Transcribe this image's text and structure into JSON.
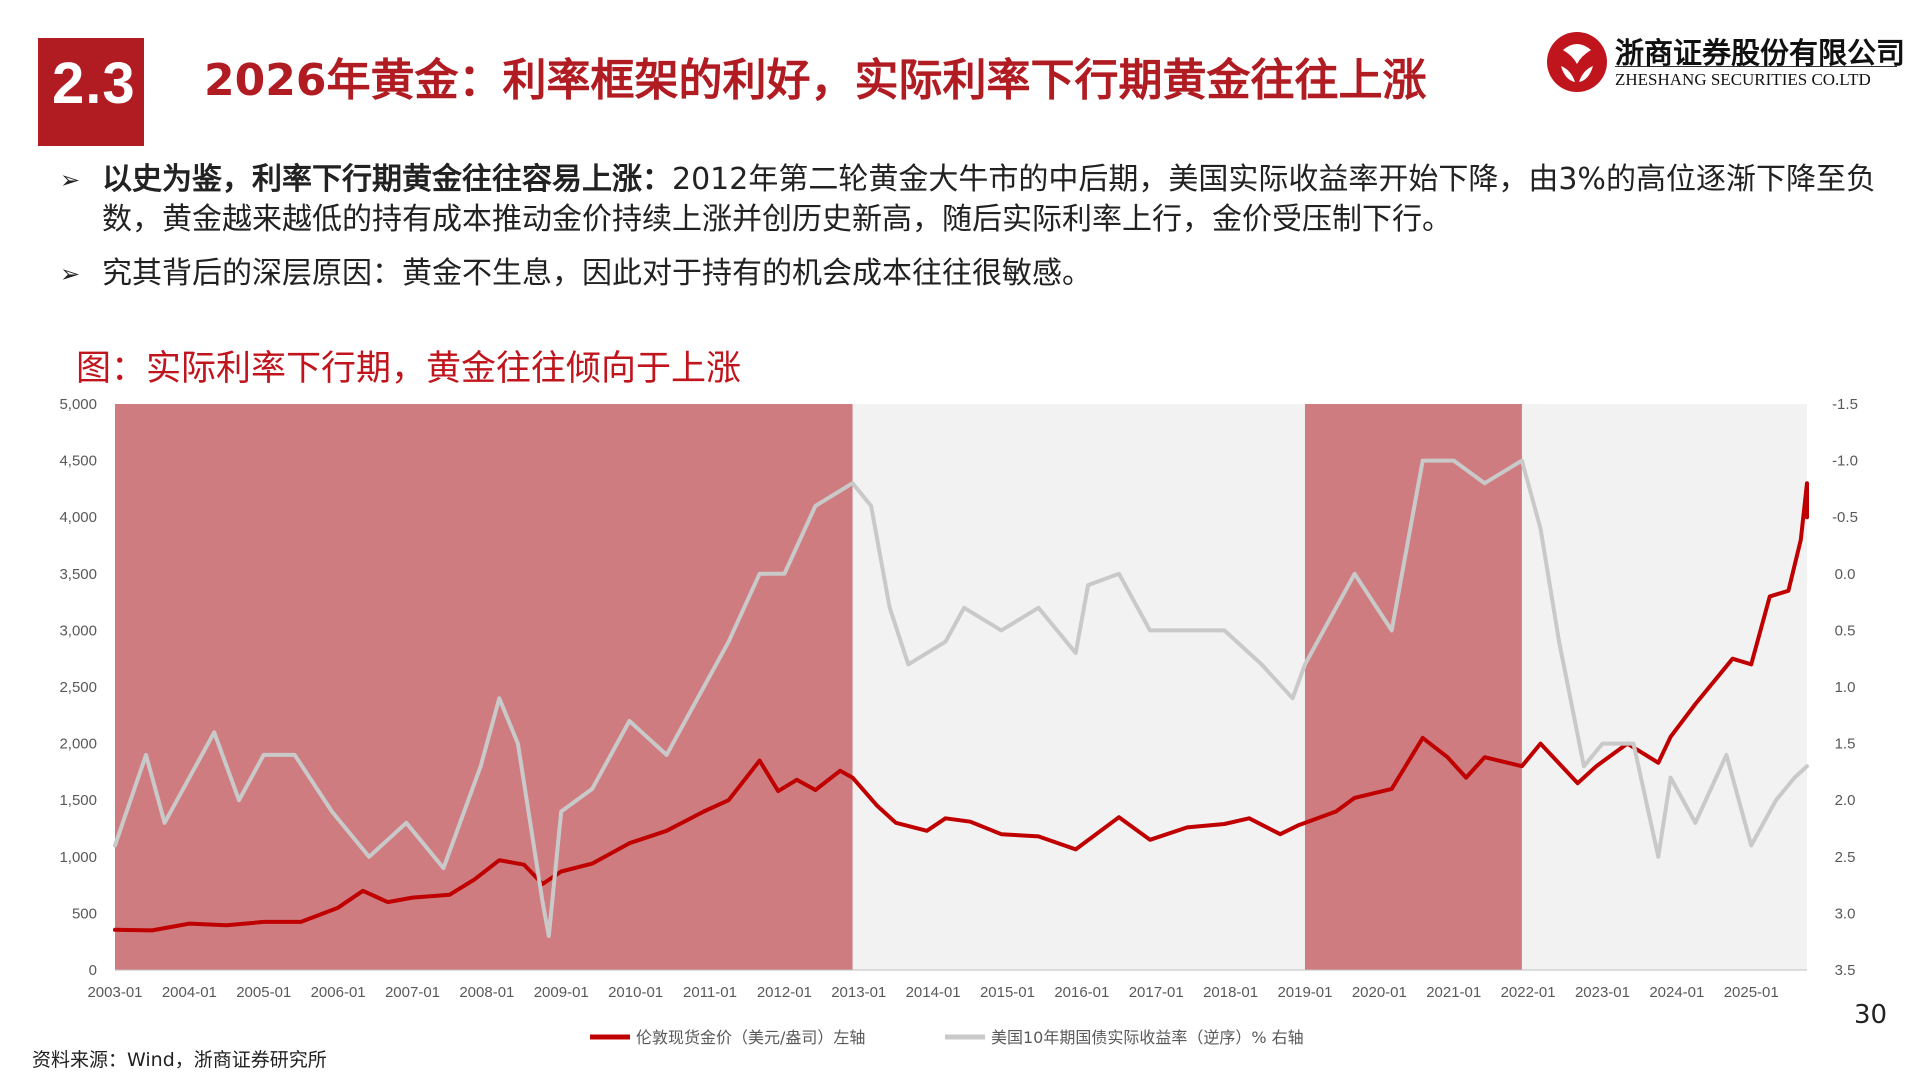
{
  "header": {
    "section_number": "2.3",
    "title": "2026年黄金：利率框架的利好，实际利率下行期黄金往往上涨",
    "logo_name": "浙商证券股份有限公司",
    "logo_en": "ZHESHANG SECURITIES CO.LTD",
    "accent_color": "#b11b22"
  },
  "bullets": [
    {
      "bold": "以史为鉴，利率下行期黄金往往容易上涨：",
      "text": "2012年第二轮黄金大牛市的中后期，美国实际收益率开始下降，由3%的高位逐渐下降至负数，黄金越来越低的持有成本推动金价持续上涨并创历史新高，随后实际利率上行，金价受压制下行。"
    },
    {
      "bold": "",
      "text": "究其背后的深层原因：黄金不生息，因此对于持有的机会成本往往很敏感。"
    }
  ],
  "figure_title": "图：实际利率下行期，黄金往往倾向于上涨",
  "page_number": "30",
  "source": "资料来源：Wind，浙商证券研究所",
  "chart_data": {
    "type": "line",
    "x_ticks": [
      "2003-01",
      "2004-01",
      "2005-01",
      "2006-01",
      "2007-01",
      "2008-01",
      "2009-01",
      "2010-01",
      "2011-01",
      "2012-01",
      "2013-01",
      "2014-01",
      "2015-01",
      "2016-01",
      "2017-01",
      "2018-01",
      "2019-01",
      "2020-01",
      "2021-01",
      "2022-01",
      "2023-01",
      "2024-01",
      "2025-01"
    ],
    "x_range": [
      "2003-01",
      "2025-10"
    ],
    "y_left": {
      "ticks": [
        "0",
        "500",
        "1,000",
        "1,500",
        "2,000",
        "2,500",
        "3,000",
        "3,500",
        "4,000",
        "4,500",
        "5,000"
      ],
      "min": 0,
      "max": 5000
    },
    "y_right": {
      "ticks": [
        "-1.5",
        "-1.0",
        "-0.5",
        "0.0",
        "0.5",
        "1.0",
        "1.5",
        "2.0",
        "2.5",
        "3.0",
        "3.5"
      ],
      "min": -1.5,
      "max": 3.5,
      "inverted": true
    },
    "shaded_periods": [
      {
        "start": "2003-01",
        "end": "2012-12"
      },
      {
        "start": "2019-01",
        "end": "2021-12"
      }
    ],
    "shade_color": "#b11b22",
    "shade_opacity": 0.55,
    "plot_background": "#f2f2f2",
    "series": [
      {
        "name": "伦敦现货金价（美元/盎司）左轴",
        "axis": "left",
        "color": "#c00000",
        "points": [
          [
            "2003-01",
            355
          ],
          [
            "2003-07",
            350
          ],
          [
            "2004-01",
            410
          ],
          [
            "2004-07",
            395
          ],
          [
            "2005-01",
            425
          ],
          [
            "2005-07",
            425
          ],
          [
            "2006-01",
            550
          ],
          [
            "2006-05",
            700
          ],
          [
            "2006-09",
            600
          ],
          [
            "2007-01",
            640
          ],
          [
            "2007-07",
            665
          ],
          [
            "2007-11",
            800
          ],
          [
            "2008-03",
            970
          ],
          [
            "2008-07",
            930
          ],
          [
            "2008-10",
            760
          ],
          [
            "2009-01",
            870
          ],
          [
            "2009-06",
            940
          ],
          [
            "2009-12",
            1120
          ],
          [
            "2010-06",
            1230
          ],
          [
            "2010-12",
            1400
          ],
          [
            "2011-04",
            1500
          ],
          [
            "2011-09",
            1850
          ],
          [
            "2011-12",
            1580
          ],
          [
            "2012-03",
            1680
          ],
          [
            "2012-06",
            1590
          ],
          [
            "2012-10",
            1760
          ],
          [
            "2012-12",
            1700
          ],
          [
            "2013-04",
            1450
          ],
          [
            "2013-07",
            1300
          ],
          [
            "2013-12",
            1230
          ],
          [
            "2014-03",
            1340
          ],
          [
            "2014-07",
            1310
          ],
          [
            "2014-12",
            1200
          ],
          [
            "2015-06",
            1180
          ],
          [
            "2015-12",
            1065
          ],
          [
            "2016-07",
            1350
          ],
          [
            "2016-12",
            1150
          ],
          [
            "2017-06",
            1260
          ],
          [
            "2017-12",
            1290
          ],
          [
            "2018-04",
            1340
          ],
          [
            "2018-09",
            1200
          ],
          [
            "2018-12",
            1280
          ],
          [
            "2019-06",
            1400
          ],
          [
            "2019-09",
            1520
          ],
          [
            "2020-03",
            1600
          ],
          [
            "2020-08",
            2050
          ],
          [
            "2020-12",
            1880
          ],
          [
            "2021-03",
            1700
          ],
          [
            "2021-06",
            1880
          ],
          [
            "2021-12",
            1800
          ],
          [
            "2022-03",
            2000
          ],
          [
            "2022-09",
            1650
          ],
          [
            "2022-12",
            1800
          ],
          [
            "2023-05",
            2000
          ],
          [
            "2023-10",
            1830
          ],
          [
            "2023-12",
            2060
          ],
          [
            "2024-04",
            2350
          ],
          [
            "2024-10",
            2750
          ],
          [
            "2025-01",
            2700
          ],
          [
            "2025-04",
            3300
          ],
          [
            "2025-07",
            3350
          ],
          [
            "2025-09",
            3800
          ],
          [
            "2025-10",
            4300
          ],
          [
            "2025-10",
            4000
          ]
        ]
      },
      {
        "name": "美国10年期国债实际收益率（逆序）% 右轴",
        "axis": "right",
        "color": "#c9c9c9",
        "points": [
          [
            "2003-01",
            2.4
          ],
          [
            "2003-06",
            1.6
          ],
          [
            "2003-09",
            2.2
          ],
          [
            "2004-01",
            1.8
          ],
          [
            "2004-05",
            1.4
          ],
          [
            "2004-09",
            2.0
          ],
          [
            "2005-01",
            1.6
          ],
          [
            "2005-06",
            1.6
          ],
          [
            "2005-12",
            2.1
          ],
          [
            "2006-06",
            2.5
          ],
          [
            "2006-12",
            2.2
          ],
          [
            "2007-06",
            2.6
          ],
          [
            "2007-12",
            1.7
          ],
          [
            "2008-03",
            1.1
          ],
          [
            "2008-06",
            1.5
          ],
          [
            "2008-10",
            2.9
          ],
          [
            "2008-11",
            3.2
          ],
          [
            "2009-01",
            2.1
          ],
          [
            "2009-06",
            1.9
          ],
          [
            "2009-12",
            1.3
          ],
          [
            "2010-06",
            1.6
          ],
          [
            "2010-12",
            1.0
          ],
          [
            "2011-04",
            0.6
          ],
          [
            "2011-09",
            0.0
          ],
          [
            "2012-01",
            0.0
          ],
          [
            "2012-06",
            -0.6
          ],
          [
            "2012-12",
            -0.8
          ],
          [
            "2013-03",
            -0.6
          ],
          [
            "2013-06",
            0.3
          ],
          [
            "2013-09",
            0.8
          ],
          [
            "2014-03",
            0.6
          ],
          [
            "2014-06",
            0.3
          ],
          [
            "2014-12",
            0.5
          ],
          [
            "2015-06",
            0.3
          ],
          [
            "2015-12",
            0.7
          ],
          [
            "2016-02",
            0.1
          ],
          [
            "2016-07",
            0.0
          ],
          [
            "2016-12",
            0.5
          ],
          [
            "2017-06",
            0.5
          ],
          [
            "2017-12",
            0.5
          ],
          [
            "2018-06",
            0.8
          ],
          [
            "2018-11",
            1.1
          ],
          [
            "2019-01",
            0.8
          ],
          [
            "2019-06",
            0.3
          ],
          [
            "2019-09",
            0.0
          ],
          [
            "2020-03",
            0.5
          ],
          [
            "2020-08",
            -1.0
          ],
          [
            "2021-01",
            -1.0
          ],
          [
            "2021-06",
            -0.8
          ],
          [
            "2021-12",
            -1.0
          ],
          [
            "2022-03",
            -0.4
          ],
          [
            "2022-06",
            0.6
          ],
          [
            "2022-10",
            1.7
          ],
          [
            "2023-01",
            1.5
          ],
          [
            "2023-06",
            1.5
          ],
          [
            "2023-10",
            2.5
          ],
          [
            "2023-12",
            1.8
          ],
          [
            "2024-04",
            2.2
          ],
          [
            "2024-09",
            1.6
          ],
          [
            "2025-01",
            2.4
          ],
          [
            "2025-05",
            2.0
          ],
          [
            "2025-08",
            1.8
          ],
          [
            "2025-10",
            1.7
          ]
        ]
      }
    ],
    "legend": {
      "placement": "bottom-center"
    }
  }
}
